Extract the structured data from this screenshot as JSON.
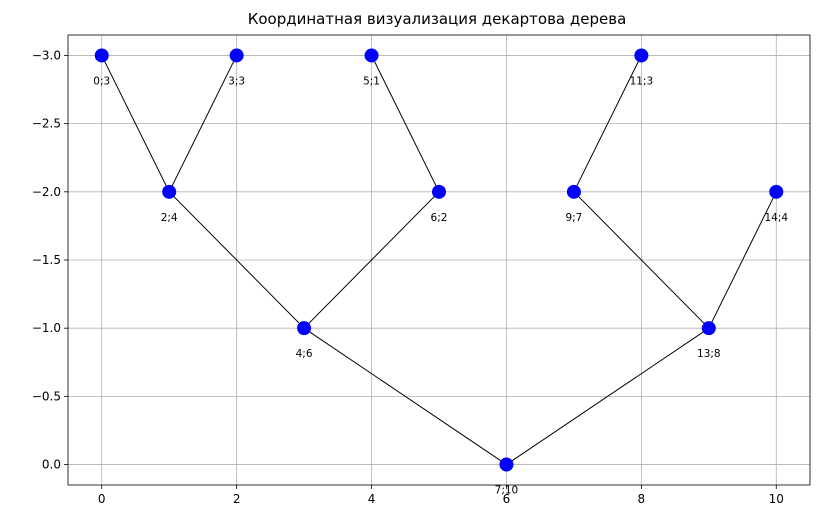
{
  "chart_data": {
    "type": "scatter",
    "title": "Координатная визуализация декартова дерева",
    "xlabel": "",
    "ylabel": "",
    "xlim": [
      -0.5,
      10.5
    ],
    "ylim": [
      0.15,
      -3.15
    ],
    "y_inverted": true,
    "grid": true,
    "x_ticks": [
      0,
      2,
      4,
      6,
      8,
      10
    ],
    "y_ticks": [
      -3.0,
      -2.5,
      -2.0,
      -1.5,
      -1.0,
      -0.5,
      0.0
    ],
    "x_tick_labels": [
      "0",
      "2",
      "4",
      "6",
      "8",
      "10"
    ],
    "y_tick_labels": [
      "−3.0",
      "−2.5",
      "−2.0",
      "−1.5",
      "−1.0",
      "−0.5",
      "0.0"
    ],
    "marker_color": "#0000ff",
    "edge_color": "#000000",
    "points": [
      {
        "id": "n0",
        "x": 0,
        "y": -3,
        "label": "0;3"
      },
      {
        "id": "n1",
        "x": 1,
        "y": -2,
        "label": "2;4"
      },
      {
        "id": "n2",
        "x": 2,
        "y": -3,
        "label": "3;3"
      },
      {
        "id": "n3",
        "x": 3,
        "y": -1,
        "label": "4;6"
      },
      {
        "id": "n4",
        "x": 4,
        "y": -3,
        "label": "5;1"
      },
      {
        "id": "n5",
        "x": 5,
        "y": -2,
        "label": "6;2"
      },
      {
        "id": "n6",
        "x": 6,
        "y": 0,
        "label": "7;10"
      },
      {
        "id": "n7",
        "x": 7,
        "y": -2,
        "label": "9;7"
      },
      {
        "id": "n8",
        "x": 8,
        "y": -3,
        "label": "11;3"
      },
      {
        "id": "n9",
        "x": 9,
        "y": -1,
        "label": "13;8"
      },
      {
        "id": "n10",
        "x": 10,
        "y": -2,
        "label": "14;4"
      }
    ],
    "edges": [
      [
        "n6",
        "n3"
      ],
      [
        "n6",
        "n9"
      ],
      [
        "n3",
        "n1"
      ],
      [
        "n3",
        "n5"
      ],
      [
        "n1",
        "n0"
      ],
      [
        "n1",
        "n2"
      ],
      [
        "n5",
        "n4"
      ],
      [
        "n9",
        "n7"
      ],
      [
        "n9",
        "n10"
      ],
      [
        "n7",
        "n8"
      ]
    ]
  }
}
